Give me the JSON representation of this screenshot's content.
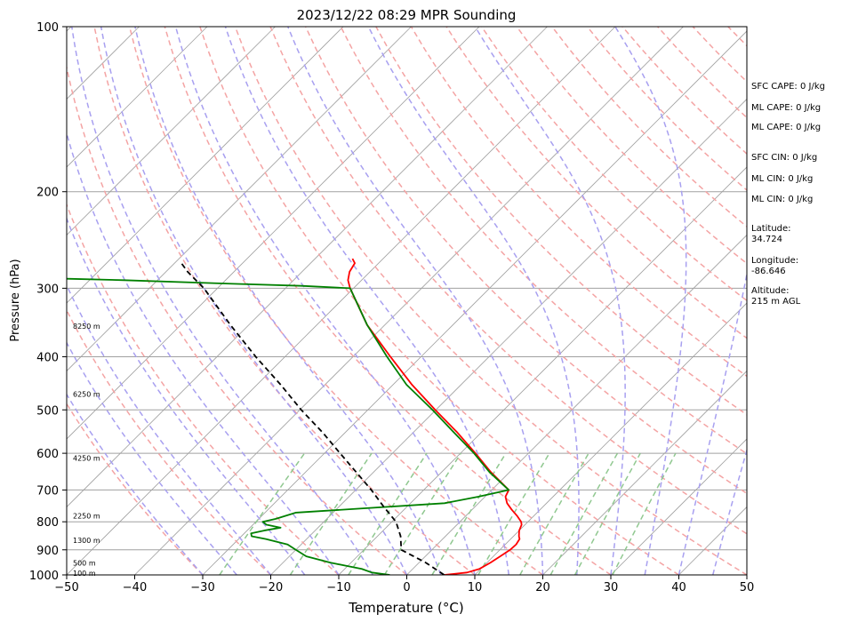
{
  "chart_data": {
    "type": "line",
    "subtype": "skew-t log-p sounding",
    "title": "2023/12/22 08:29 MPR Sounding",
    "xlabel": "Temperature (°C)",
    "ylabel": "Pressure (hPa)",
    "xlim": [
      -50,
      50
    ],
    "ylim": [
      1000,
      100
    ],
    "y_scale": "log",
    "skew_degrees": 45,
    "x_ticks": [
      -50,
      -40,
      -30,
      -20,
      -10,
      0,
      10,
      20,
      30,
      40,
      50
    ],
    "y_ticks": [
      1000,
      900,
      800,
      700,
      600,
      500,
      400,
      300,
      200,
      100
    ],
    "grid": true,
    "series": [
      {
        "key": "temperature",
        "color": "#ff0000",
        "style": "solid",
        "pressure": [
          1000,
          990,
          975,
          950,
          925,
          900,
          880,
          860,
          850,
          830,
          810,
          800,
          780,
          760,
          740,
          720,
          700,
          650,
          600,
          550,
          500,
          450,
          400,
          350,
          300,
          290,
          280,
          270,
          265
        ],
        "values": [
          5.5,
          8.5,
          9.8,
          10.5,
          11.0,
          11.5,
          11.6,
          11.3,
          10.8,
          10.0,
          9.5,
          9.0,
          7.5,
          5.8,
          4.2,
          3.0,
          2.5,
          -2.7,
          -7.8,
          -13.5,
          -20.1,
          -27.2,
          -34.5,
          -42.6,
          -50.5,
          -52.0,
          -53.0,
          -53.5,
          -54.5
        ]
      },
      {
        "key": "dewpoint",
        "color": "#008000",
        "style": "solid",
        "pressure": [
          1000,
          990,
          975,
          950,
          925,
          900,
          880,
          860,
          850,
          840,
          830,
          820,
          810,
          800,
          790,
          770,
          740,
          720,
          700,
          650,
          600,
          550,
          500,
          450,
          400,
          350,
          300,
          297,
          294,
          290,
          287,
          285
        ],
        "values": [
          -2.5,
          -5.5,
          -7.5,
          -13.0,
          -17.5,
          -20.0,
          -22.0,
          -26.0,
          -28.5,
          -29.0,
          -27.5,
          -25.5,
          -28.0,
          -29.0,
          -27.5,
          -25.5,
          -5.0,
          -1.0,
          2.5,
          -2.9,
          -8.0,
          -14.0,
          -20.5,
          -28.0,
          -35.0,
          -42.6,
          -50.5,
          -58.0,
          -70.0,
          -85.0,
          -100.0,
          -110.0
        ]
      },
      {
        "key": "parcel",
        "color": "#000000",
        "style": "dashed",
        "pressure": [
          1000,
          950,
          900,
          850,
          800,
          750,
          700,
          650,
          600,
          550,
          500,
          450,
          400,
          350,
          300,
          280,
          270
        ],
        "values": [
          5.5,
          1.0,
          -4.5,
          -6.6,
          -9.4,
          -13.5,
          -17.7,
          -22.5,
          -27.7,
          -33.3,
          -39.8,
          -46.5,
          -54.3,
          -62.7,
          -72.0,
          -76.8,
          -79.0
        ]
      }
    ],
    "dry_adiabats_theta_c": [
      -30,
      -20,
      -10,
      0,
      10,
      20,
      30,
      40,
      50,
      60,
      70,
      80,
      90,
      100,
      110,
      120,
      130,
      140,
      150,
      160,
      170,
      180,
      190,
      200
    ],
    "moist_adiabats_start_c": [
      -30,
      -25,
      -20,
      -15,
      -10,
      -5,
      0,
      5,
      10,
      15,
      20,
      25,
      30,
      35,
      40,
      45
    ],
    "mixing_ratios_gkg": [
      0.4,
      1,
      2,
      3,
      5,
      8,
      12,
      16,
      20,
      28
    ],
    "height_labels": [
      {
        "pressure": 993,
        "text": "100 m"
      },
      {
        "pressure": 950,
        "text": "500 m"
      },
      {
        "pressure": 865,
        "text": "1300 m"
      },
      {
        "pressure": 780,
        "text": "2250 m"
      },
      {
        "pressure": 612,
        "text": "4250 m"
      },
      {
        "pressure": 468,
        "text": "6250 m"
      },
      {
        "pressure": 352,
        "text": "8250 m"
      }
    ],
    "colors": {
      "dry_adiabat": "#f4a4a4",
      "moist_adiabat": "#a8a0f0",
      "mixing_ratio": "#90c890",
      "isotherm": "#a0a0a0",
      "isobar": "#a0a0a0"
    }
  },
  "info_panel": {
    "sfc_cape": "SFC CAPE: 0 J/kg",
    "ml_cape_1": "ML CAPE: 0 J/kg",
    "ml_cape_2": "ML CAPE: 0 J/kg",
    "sfc_cin": "SFC CIN: 0 J/kg",
    "ml_cin_1": "ML CIN: 0 J/kg",
    "ml_cin_2": "ML CIN: 0 J/kg",
    "latitude_label": "Latitude:",
    "latitude_value": "34.724",
    "longitude_label": "Longitude:",
    "longitude_value": "-86.646",
    "altitude_label": "Altitude:",
    "altitude_value": "215 m AGL"
  }
}
